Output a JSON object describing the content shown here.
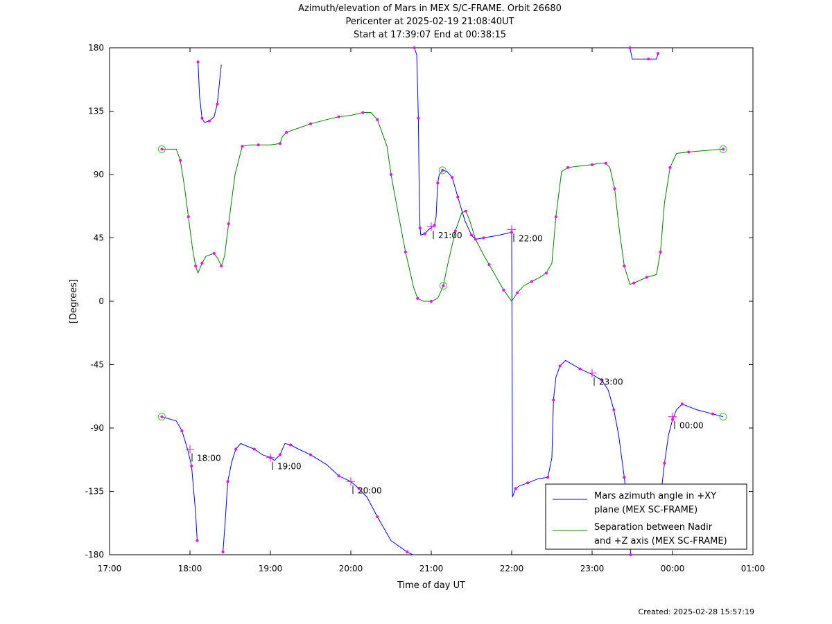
{
  "chart_data": {
    "type": "line",
    "title": "Azimuth/elevation of Mars in MEX S/C-FRAME.  Orbit 26680",
    "subtitle": "Pericenter at 2025-02-19 21:08:40UT",
    "subtitle2": "Start at 17:39:07 End at 00:38:15",
    "xlabel": "Time of day UT",
    "ylabel": "[Degrees]",
    "x_range_hours": [
      17,
      25
    ],
    "ylim": [
      -180,
      180
    ],
    "x_tick_labels": [
      "17:00",
      "18:00",
      "19:00",
      "20:00",
      "21:00",
      "22:00",
      "23:00",
      "00:00",
      "01:00"
    ],
    "y_ticks": [
      -180,
      -135,
      -90,
      -45,
      0,
      45,
      90,
      135,
      180
    ],
    "legend_position": "bottom-right",
    "series": [
      {
        "name": "Mars azimuth angle in +XY plane (MEX SC-FRAME)",
        "legend_lines": [
          "Mars azimuth angle in +XY",
          "plane (MEX SC-FRAME)"
        ],
        "color": "#0000ff",
        "segments": [
          [
            [
              17.65,
              -82
            ],
            [
              17.83,
              -85
            ],
            [
              17.9,
              -92
            ],
            [
              17.97,
              -105
            ],
            [
              18.02,
              -117
            ],
            [
              18.07,
              -150
            ],
            [
              18.09,
              -170
            ]
          ],
          [
            [
              18.1,
              170
            ],
            [
              18.12,
              145
            ],
            [
              18.15,
              130
            ],
            [
              18.18,
              127
            ],
            [
              18.24,
              128
            ],
            [
              18.3,
              131
            ],
            [
              18.34,
              140
            ],
            [
              18.39,
              168
            ]
          ],
          [
            [
              18.41,
              -178
            ],
            [
              18.44,
              -155
            ],
            [
              18.47,
              -128
            ],
            [
              18.52,
              -114
            ],
            [
              18.57,
              -105
            ],
            [
              18.63,
              -101
            ],
            [
              18.8,
              -105
            ],
            [
              18.9,
              -109
            ],
            [
              19.0,
              -111
            ],
            [
              19.05,
              -113
            ],
            [
              19.12,
              -109
            ],
            [
              19.18,
              -101
            ],
            [
              19.25,
              -102
            ],
            [
              19.35,
              -105
            ],
            [
              19.5,
              -109
            ],
            [
              19.7,
              -116
            ],
            [
              19.85,
              -124
            ],
            [
              20.0,
              -128
            ],
            [
              20.1,
              -133
            ],
            [
              20.2,
              -139
            ],
            [
              20.33,
              -153
            ],
            [
              20.5,
              -170
            ],
            [
              20.7,
              -178
            ],
            [
              20.77,
              -180
            ]
          ],
          [
            [
              20.79,
              180
            ],
            [
              20.82,
              175
            ],
            [
              20.84,
              130
            ],
            [
              20.85,
              80
            ],
            [
              20.86,
              52
            ],
            [
              20.87,
              47
            ],
            [
              20.92,
              48
            ],
            [
              20.97,
              51
            ],
            [
              21.04,
              54
            ],
            [
              21.06,
              60
            ],
            [
              21.08,
              84
            ],
            [
              21.1,
              90
            ],
            [
              21.14,
              93
            ],
            [
              21.2,
              92
            ],
            [
              21.26,
              88
            ],
            [
              21.33,
              74
            ],
            [
              41.0,
              null
            ]
          ],
          [
            [
              21.33,
              74
            ],
            [
              21.42,
              57
            ],
            [
              21.5,
              47
            ],
            [
              21.55,
              44
            ],
            [
              21.65,
              45
            ],
            [
              21.85,
              47
            ],
            [
              22.0,
              49
            ],
            [
              22.01,
              -139
            ],
            [
              22.05,
              -133
            ],
            [
              22.1,
              -131
            ],
            [
              22.2,
              -129
            ],
            [
              22.33,
              -126
            ],
            [
              22.45,
              -125
            ],
            [
              22.5,
              -111
            ],
            [
              22.52,
              -70
            ],
            [
              22.55,
              -54
            ],
            [
              22.6,
              -46
            ],
            [
              22.67,
              -42
            ],
            [
              22.85,
              -48
            ],
            [
              23.0,
              -52
            ],
            [
              23.12,
              -56
            ],
            [
              23.2,
              -63
            ],
            [
              23.27,
              -77
            ],
            [
              23.33,
              -95
            ],
            [
              23.4,
              -125
            ],
            [
              23.45,
              -150
            ],
            [
              23.48,
              -180
            ]
          ],
          [
            [
              23.47,
              180
            ],
            [
              23.5,
              172
            ],
            [
              23.7,
              172
            ],
            [
              23.8,
              172
            ],
            [
              23.82,
              176
            ]
          ],
          [
            [
              23.84,
              -150
            ],
            [
              23.86,
              -135
            ],
            [
              23.9,
              -115
            ],
            [
              23.95,
              -95
            ],
            [
              24.0,
              -84
            ],
            [
              24.05,
              -77
            ],
            [
              24.12,
              -73
            ],
            [
              24.3,
              -77
            ],
            [
              24.5,
              -80
            ],
            [
              24.63,
              -82
            ]
          ]
        ]
      },
      {
        "name": "Separation between Nadir and +Z axis (MEX SC-FRAME)",
        "legend_lines": [
          "Separation between Nadir",
          "and +Z axis (MEX SC-FRAME)"
        ],
        "color": "#008000",
        "points": [
          [
            17.65,
            108
          ],
          [
            17.83,
            108
          ],
          [
            17.88,
            100
          ],
          [
            17.93,
            82
          ],
          [
            17.98,
            60
          ],
          [
            18.03,
            38
          ],
          [
            18.07,
            25
          ],
          [
            18.1,
            20
          ],
          [
            18.15,
            27
          ],
          [
            18.2,
            32
          ],
          [
            18.3,
            34
          ],
          [
            18.35,
            30
          ],
          [
            18.39,
            25
          ],
          [
            18.43,
            32
          ],
          [
            18.48,
            55
          ],
          [
            18.56,
            90
          ],
          [
            18.65,
            110
          ],
          [
            18.75,
            111
          ],
          [
            18.85,
            111
          ],
          [
            19.0,
            111
          ],
          [
            19.12,
            112
          ],
          [
            19.15,
            117
          ],
          [
            19.2,
            120
          ],
          [
            19.35,
            123
          ],
          [
            19.5,
            126
          ],
          [
            19.7,
            129
          ],
          [
            19.85,
            131
          ],
          [
            20.0,
            132
          ],
          [
            20.15,
            134
          ],
          [
            20.25,
            134
          ],
          [
            20.33,
            129
          ],
          [
            20.45,
            110
          ],
          [
            20.5,
            90
          ],
          [
            20.58,
            65
          ],
          [
            20.68,
            35
          ],
          [
            20.78,
            10
          ],
          [
            20.83,
            2
          ],
          [
            20.9,
            0
          ],
          [
            21.0,
            0
          ],
          [
            21.08,
            2
          ],
          [
            21.15,
            11
          ],
          [
            21.2,
            25
          ],
          [
            21.3,
            50
          ],
          [
            21.38,
            63
          ],
          [
            21.43,
            64
          ],
          [
            21.48,
            57
          ],
          [
            21.55,
            44
          ],
          [
            21.65,
            33
          ],
          [
            21.72,
            26
          ],
          [
            21.8,
            18
          ],
          [
            21.9,
            8
          ],
          [
            22.0,
            0
          ],
          [
            22.07,
            6
          ],
          [
            22.15,
            11
          ],
          [
            22.25,
            14
          ],
          [
            22.35,
            17
          ],
          [
            22.43,
            20
          ],
          [
            22.5,
            27
          ],
          [
            22.55,
            60
          ],
          [
            22.62,
            92
          ],
          [
            22.7,
            95
          ],
          [
            22.85,
            96
          ],
          [
            23.0,
            97
          ],
          [
            23.1,
            98
          ],
          [
            23.17,
            98
          ],
          [
            23.22,
            95
          ],
          [
            23.28,
            80
          ],
          [
            23.34,
            50
          ],
          [
            23.4,
            25
          ],
          [
            23.47,
            12
          ],
          [
            23.52,
            13
          ],
          [
            23.6,
            15
          ],
          [
            23.68,
            17
          ],
          [
            23.8,
            19
          ],
          [
            23.85,
            35
          ],
          [
            23.9,
            70
          ],
          [
            23.97,
            95
          ],
          [
            24.05,
            105
          ],
          [
            24.2,
            106
          ],
          [
            24.4,
            107
          ],
          [
            24.63,
            108
          ]
        ]
      }
    ],
    "marker_color": "#ff00ff",
    "start_end_marker_color": "#33cc33",
    "time_annotations": [
      {
        "label": "18:00",
        "x": 18.0,
        "y": -105
      },
      {
        "label": "19:00",
        "x": 19.0,
        "y": -111
      },
      {
        "label": "20:00",
        "x": 20.0,
        "y": -128
      },
      {
        "label": "21:00",
        "x": 21.0,
        "y": 53
      },
      {
        "label": "22:00",
        "x": 22.0,
        "y": 51
      },
      {
        "label": "23:00",
        "x": 23.0,
        "y": -51
      },
      {
        "label": "00:00",
        "x": 24.0,
        "y": -82
      }
    ]
  },
  "footer": {
    "created": "Created: 2025-02-28 15:57:19"
  }
}
